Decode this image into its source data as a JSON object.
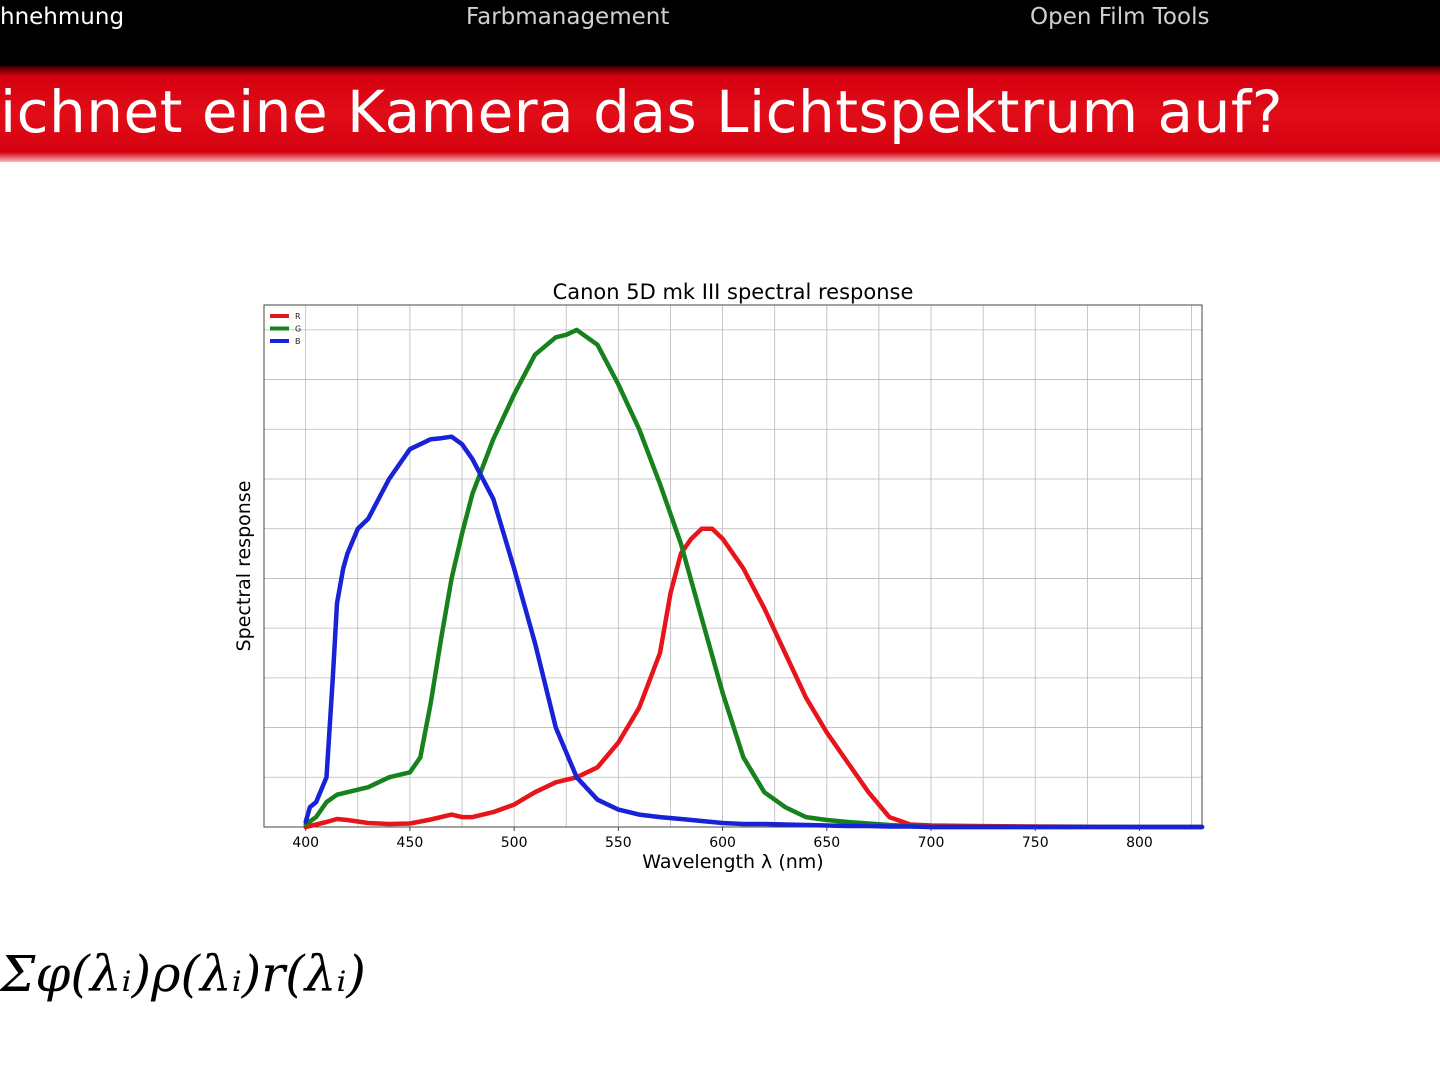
{
  "nav": {
    "items": [
      {
        "label": "hnehmung",
        "active": true
      },
      {
        "label": "Farbmanagement",
        "active": false
      },
      {
        "label": "Open Film Tools",
        "active": false
      }
    ]
  },
  "slide": {
    "title": "ichnet eine Kamera das Lichtspektrum auf?",
    "formula": "Σφ(λᵢ)ρ(λᵢ)r(λᵢ)"
  },
  "colors": {
    "nav_bg": "#000000",
    "title_bar": "#e10d18",
    "red": "#e8141b",
    "green": "#17821d",
    "blue": "#1822d6"
  },
  "chart_data": {
    "type": "line",
    "title": "Canon 5D mk III spectral response",
    "xlabel": "Wavelength λ (nm)",
    "ylabel": "Spectral response",
    "xlim": [
      380,
      830
    ],
    "ylim": [
      0,
      1.05
    ],
    "xticks": [
      400,
      450,
      500,
      550,
      600,
      650,
      700,
      750,
      800
    ],
    "grid": true,
    "legend_position": "top-left",
    "series": [
      {
        "name": "R",
        "color": "#e8141b",
        "x": [
          400,
          405,
          410,
          415,
          420,
          430,
          440,
          450,
          460,
          470,
          475,
          480,
          490,
          500,
          510,
          520,
          530,
          540,
          550,
          560,
          570,
          575,
          580,
          585,
          590,
          595,
          600,
          610,
          620,
          630,
          640,
          650,
          660,
          670,
          680,
          690,
          700,
          720,
          750,
          800,
          830
        ],
        "y": [
          0,
          0.005,
          0.01,
          0.016,
          0.014,
          0.008,
          0.006,
          0.007,
          0.015,
          0.025,
          0.02,
          0.02,
          0.03,
          0.045,
          0.07,
          0.09,
          0.1,
          0.12,
          0.17,
          0.24,
          0.35,
          0.47,
          0.55,
          0.58,
          0.6,
          0.6,
          0.58,
          0.52,
          0.44,
          0.35,
          0.26,
          0.19,
          0.13,
          0.07,
          0.02,
          0.005,
          0.003,
          0.002,
          0.001,
          0,
          0
        ]
      },
      {
        "name": "G",
        "color": "#17821d",
        "x": [
          400,
          405,
          410,
          415,
          420,
          430,
          440,
          450,
          455,
          460,
          465,
          470,
          475,
          480,
          490,
          500,
          510,
          520,
          525,
          530,
          540,
          550,
          560,
          570,
          580,
          590,
          600,
          610,
          620,
          630,
          640,
          650,
          660,
          670,
          680,
          690,
          700,
          750,
          800,
          830
        ],
        "y": [
          0.005,
          0.02,
          0.05,
          0.065,
          0.07,
          0.08,
          0.1,
          0.11,
          0.14,
          0.25,
          0.38,
          0.5,
          0.59,
          0.67,
          0.78,
          0.87,
          0.95,
          0.985,
          0.99,
          1.0,
          0.97,
          0.89,
          0.8,
          0.69,
          0.57,
          0.42,
          0.27,
          0.14,
          0.07,
          0.04,
          0.02,
          0.014,
          0.01,
          0.007,
          0.004,
          0.002,
          0,
          0,
          0,
          0
        ]
      },
      {
        "name": "B",
        "color": "#1822d6",
        "x": [
          400,
          402,
          405,
          410,
          413,
          415,
          418,
          420,
          425,
          430,
          435,
          440,
          450,
          460,
          465,
          470,
          475,
          480,
          490,
          500,
          510,
          520,
          530,
          540,
          550,
          560,
          570,
          580,
          590,
          600,
          610,
          620,
          630,
          640,
          650,
          660,
          670,
          680,
          690,
          700,
          750,
          800,
          830
        ],
        "y": [
          0.01,
          0.04,
          0.05,
          0.1,
          0.3,
          0.45,
          0.52,
          0.55,
          0.6,
          0.62,
          0.66,
          0.7,
          0.76,
          0.78,
          0.782,
          0.785,
          0.77,
          0.74,
          0.66,
          0.52,
          0.37,
          0.2,
          0.1,
          0.055,
          0.035,
          0.025,
          0.02,
          0.016,
          0.012,
          0.008,
          0.006,
          0.006,
          0.005,
          0.004,
          0.003,
          0.002,
          0.002,
          0.001,
          0.001,
          0,
          0,
          0,
          0
        ]
      }
    ]
  }
}
